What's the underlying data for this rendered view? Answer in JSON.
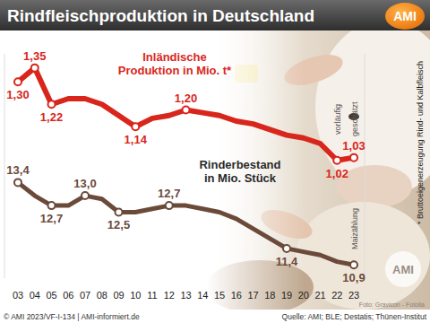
{
  "header": {
    "title": "Rindfleischproduktion in Deutschland",
    "logo": "AMI"
  },
  "chart_data": {
    "type": "line",
    "categories": [
      "03",
      "04",
      "05",
      "06",
      "07",
      "08",
      "09",
      "10",
      "11",
      "12",
      "13",
      "14",
      "15",
      "16",
      "17",
      "18",
      "19",
      "20",
      "21",
      "22",
      "23"
    ],
    "series": [
      {
        "name": "Inländische Produktion in Mio. t*",
        "color": "#d9261c",
        "marker": "circle",
        "values": [
          1.3,
          1.35,
          1.22,
          1.24,
          1.24,
          1.22,
          1.18,
          1.14,
          1.17,
          1.18,
          1.2,
          1.19,
          1.18,
          1.16,
          1.15,
          1.13,
          1.11,
          1.1,
          1.08,
          1.02,
          1.03
        ],
        "value_labels": [
          "1,30",
          "1,35",
          "1,22",
          null,
          null,
          null,
          null,
          "1,14",
          null,
          null,
          "1,20",
          null,
          null,
          null,
          null,
          null,
          null,
          null,
          null,
          "1,02",
          "1,03"
        ]
      },
      {
        "name": "Rinderbestand in Mio. Stück",
        "color": "#6b4a3a",
        "marker": "circle",
        "axis": "y2",
        "values": [
          13.4,
          13.0,
          12.7,
          12.7,
          13.0,
          12.9,
          12.5,
          12.5,
          12.6,
          12.7,
          12.7,
          12.6,
          12.5,
          12.3,
          12.0,
          11.7,
          11.4,
          11.3,
          11.2,
          11.0,
          10.9
        ],
        "value_labels": [
          "13,4",
          null,
          "12,7",
          null,
          "13,0",
          null,
          "12,5",
          null,
          null,
          "12,7",
          null,
          null,
          null,
          null,
          null,
          null,
          "11,4",
          null,
          null,
          null,
          "10,9"
        ]
      }
    ],
    "ylim": [
      0.6,
      1.4
    ],
    "y2lim": [
      10.5,
      17.3
    ],
    "data_labels": true,
    "tick_labels": "x",
    "grid": false,
    "annotations": [
      "vorläufig",
      "geschätzt",
      "Maizählung"
    ]
  },
  "footnote": "* Bruttoeigenerzeugung Rind- und Kalbfleisch",
  "footer": {
    "copyright": "© AMI 2023/VF-I-134 | AMI-informiert.de",
    "source": "Quelle: AMI; BLE; Destatis; Thünen-Institut",
    "photo_credit": "Foto: Gravicon - Fotolia"
  }
}
